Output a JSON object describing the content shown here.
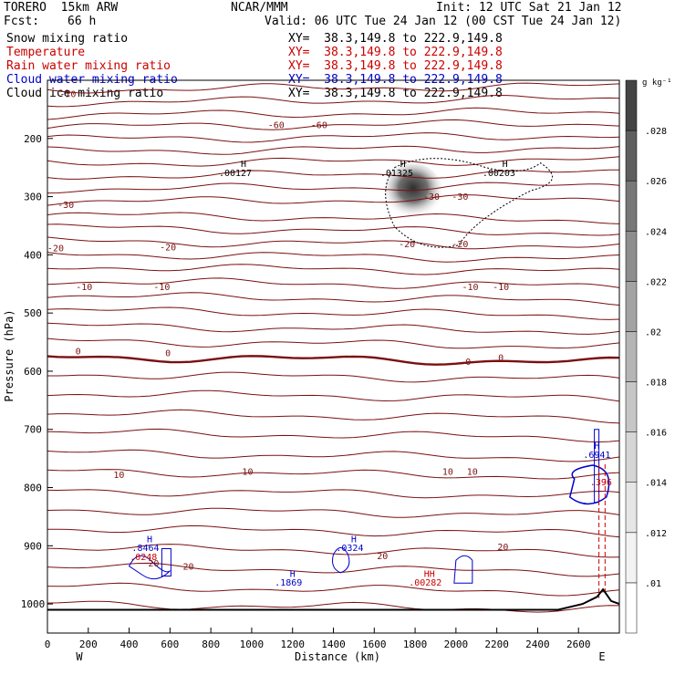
{
  "header": {
    "model": "TORERO  15km ARW",
    "org": "NCAR/MMM",
    "init": "Init: 12 UTC Sat 21 Jan 12",
    "fcst_label": "Fcst:",
    "fcst_value": "66 h",
    "valid": "Valid: 06 UTC Tue 24 Jan 12 (00 CST Tue 24 Jan 12)"
  },
  "fields": [
    {
      "name": "Snow mixing ratio",
      "xy": "XY=  38.3,149.8 to 222.9,149.8",
      "color": "#000000",
      "xy_color": "#000000"
    },
    {
      "name": "Temperature",
      "xy": "XY=  38.3,149.8 to 222.9,149.8",
      "color": "#cc0000",
      "xy_color": "#cc0000"
    },
    {
      "name": "Rain water mixing ratio",
      "xy": "XY=  38.3,149.8 to 222.9,149.8",
      "color": "#cc0000",
      "xy_color": "#cc0000"
    },
    {
      "name": "Cloud water mixing ratio",
      "xy": "XY=  38.3,149.8 to 222.9,149.8",
      "color": "#0000cc",
      "xy_color": "#0000cc"
    },
    {
      "name": "Cloud ice mixing ratio",
      "xy": "XY=  38.3,149.8 to 222.9,149.8",
      "color": "#000000",
      "xy_color": "#000000"
    }
  ],
  "chart_data": {
    "type": "heatmap",
    "title": "",
    "xlabel": "Distance (km)",
    "ylabel": "Pressure (hPa)",
    "xlim": [
      0,
      2800
    ],
    "ylim": [
      1050,
      100
    ],
    "x_ticks": [
      0,
      200,
      400,
      600,
      800,
      1000,
      1200,
      1400,
      1600,
      1800,
      2000,
      2200,
      2400,
      2600
    ],
    "y_ticks": [
      200,
      300,
      400,
      500,
      600,
      700,
      800,
      900,
      1000
    ],
    "x_end_labels": {
      "left": "W",
      "right": "E"
    },
    "colorbar": {
      "units": "g kg⁻¹",
      "ticks": [
        ".01",
        ".012",
        ".014",
        ".016",
        ".018",
        ".02",
        ".022",
        ".024",
        ".026",
        ".028"
      ],
      "tick_values": [
        0.01,
        0.012,
        0.014,
        0.016,
        0.018,
        0.02,
        0.022,
        0.024,
        0.026,
        0.028
      ],
      "colors": [
        "#ffffff",
        "#f3f3f3",
        "#e6e6e6",
        "#d6d6d6",
        "#c6c6c6",
        "#b5b5b5",
        "#a3a3a3",
        "#8e8e8e",
        "#777777",
        "#5e5e5e",
        "#444444"
      ]
    },
    "temperature_isotherms_c": [
      -70,
      -60,
      -50,
      -40,
      -30,
      -20,
      -10,
      0,
      10,
      20
    ],
    "temperature_labels": [
      {
        "text": "-70",
        "x": 100,
        "p": 123
      },
      {
        "text": "-60",
        "x": 1120,
        "p": 176
      },
      {
        "text": "-60",
        "x": 1330,
        "p": 176
      },
      {
        "text": "-30",
        "x": 90,
        "p": 313
      },
      {
        "text": "-30",
        "x": 1880,
        "p": 299
      },
      {
        "text": "-30",
        "x": 2020,
        "p": 299
      },
      {
        "text": "-20",
        "x": 40,
        "p": 388
      },
      {
        "text": "-20",
        "x": 590,
        "p": 386
      },
      {
        "text": "-20",
        "x": 1760,
        "p": 381
      },
      {
        "text": "-20",
        "x": 2020,
        "p": 381
      },
      {
        "text": "-10",
        "x": 180,
        "p": 454
      },
      {
        "text": "-10",
        "x": 560,
        "p": 454
      },
      {
        "text": "-10",
        "x": 2070,
        "p": 454
      },
      {
        "text": "-10",
        "x": 2220,
        "p": 454
      },
      {
        "text": "0",
        "x": 150,
        "p": 565
      },
      {
        "text": "0",
        "x": 590,
        "p": 568
      },
      {
        "text": "0",
        "x": 2060,
        "p": 583
      },
      {
        "text": "0",
        "x": 2220,
        "p": 576
      },
      {
        "text": "10",
        "x": 350,
        "p": 777
      },
      {
        "text": "10",
        "x": 980,
        "p": 772
      },
      {
        "text": "10",
        "x": 1960,
        "p": 772
      },
      {
        "text": "10",
        "x": 2080,
        "p": 772
      },
      {
        "text": "20",
        "x": 520,
        "p": 929
      },
      {
        "text": "20",
        "x": 690,
        "p": 935
      },
      {
        "text": "20",
        "x": 1640,
        "p": 917
      },
      {
        "text": "20",
        "x": 2230,
        "p": 901
      }
    ],
    "annotations": [
      {
        "text": "H",
        "x": 960,
        "p": 243,
        "color": "#000000"
      },
      {
        "text": ".00127",
        "x": 920,
        "p": 258,
        "color": "#000000"
      },
      {
        "text": "H",
        "x": 1740,
        "p": 243,
        "color": "#000000"
      },
      {
        "text": ".01325",
        "x": 1710,
        "p": 258,
        "color": "#000000"
      },
      {
        "text": "H",
        "x": 2240,
        "p": 243,
        "color": "#000000"
      },
      {
        "text": ".00203",
        "x": 2210,
        "p": 258,
        "color": "#000000"
      },
      {
        "text": "H",
        "x": 2690,
        "p": 727,
        "color": "#0000cc"
      },
      {
        "text": ".6941",
        "x": 2690,
        "p": 743,
        "color": "#0000cc"
      },
      {
        "text": ".396",
        "x": 2710,
        "p": 790,
        "color": "#cc0000"
      },
      {
        "text": "H",
        "x": 500,
        "p": 888,
        "color": "#0000cc"
      },
      {
        "text": ".8464",
        "x": 480,
        "p": 903,
        "color": "#0000cc"
      },
      {
        "text": ".0248",
        "x": 470,
        "p": 918,
        "color": "#cc0000"
      },
      {
        "text": "H",
        "x": 1500,
        "p": 888,
        "color": "#0000cc"
      },
      {
        "text": ".0324",
        "x": 1480,
        "p": 903,
        "color": "#0000cc"
      },
      {
        "text": "H",
        "x": 1200,
        "p": 947,
        "color": "#0000cc"
      },
      {
        "text": ".1869",
        "x": 1180,
        "p": 962,
        "color": "#0000cc"
      },
      {
        "text": "HH",
        "x": 1870,
        "p": 947,
        "color": "#cc0000"
      },
      {
        "text": ".00282",
        "x": 1850,
        "p": 962,
        "color": "#cc0000"
      }
    ]
  }
}
